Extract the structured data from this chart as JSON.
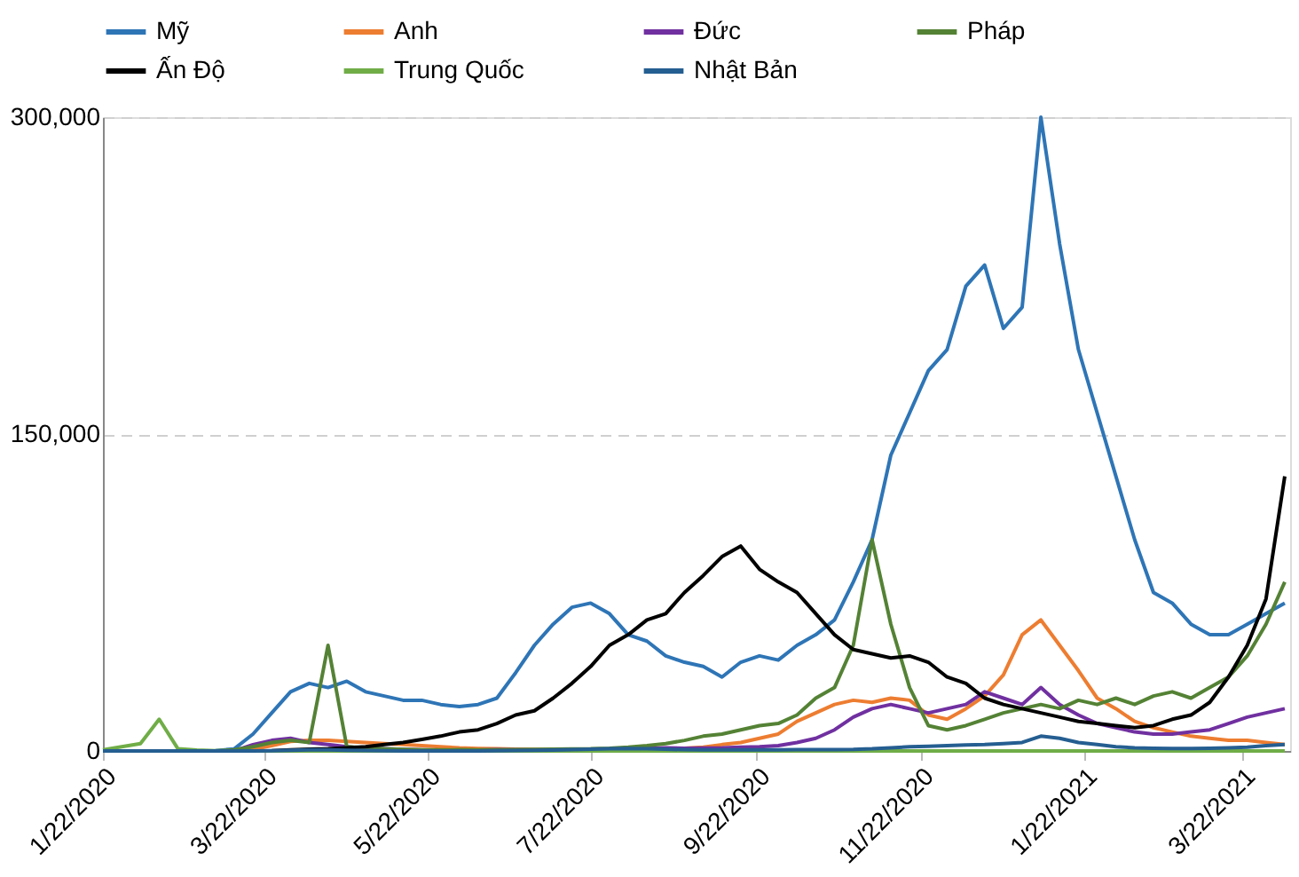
{
  "chart_data": {
    "type": "line",
    "x": [
      "2020-01-22",
      "2020-01-29",
      "2020-02-05",
      "2020-02-12",
      "2020-02-19",
      "2020-02-26",
      "2020-03-04",
      "2020-03-11",
      "2020-03-18",
      "2020-03-25",
      "2020-04-01",
      "2020-04-08",
      "2020-04-15",
      "2020-04-22",
      "2020-04-29",
      "2020-05-06",
      "2020-05-13",
      "2020-05-20",
      "2020-05-27",
      "2020-06-03",
      "2020-06-10",
      "2020-06-17",
      "2020-06-24",
      "2020-07-01",
      "2020-07-08",
      "2020-07-15",
      "2020-07-22",
      "2020-07-29",
      "2020-08-05",
      "2020-08-12",
      "2020-08-19",
      "2020-08-26",
      "2020-09-02",
      "2020-09-09",
      "2020-09-16",
      "2020-09-23",
      "2020-09-30",
      "2020-10-07",
      "2020-10-14",
      "2020-10-21",
      "2020-10-28",
      "2020-11-04",
      "2020-11-11",
      "2020-11-18",
      "2020-11-25",
      "2020-12-02",
      "2020-12-09",
      "2020-12-16",
      "2020-12-23",
      "2020-12-30",
      "2021-01-06",
      "2021-01-13",
      "2021-01-20",
      "2021-01-27",
      "2021-02-03",
      "2021-02-10",
      "2021-02-17",
      "2021-02-24",
      "2021-03-03",
      "2021-03-10",
      "2021-03-17",
      "2021-03-24",
      "2021-03-31",
      "2021-04-07"
    ],
    "series": [
      {
        "name": "Mỹ",
        "color": "#2e75b6",
        "values": [
          0,
          0,
          0,
          0,
          0,
          0,
          100,
          1000,
          8000,
          18000,
          28000,
          32000,
          30000,
          33000,
          28000,
          26000,
          24000,
          24000,
          22000,
          21000,
          22000,
          25000,
          37000,
          50000,
          60000,
          68000,
          70000,
          65000,
          55000,
          52000,
          45000,
          42000,
          40000,
          35000,
          42000,
          45000,
          43000,
          50000,
          55000,
          62000,
          80000,
          100000,
          140000,
          160000,
          180000,
          190000,
          220000,
          230000,
          200000,
          210000,
          300000,
          240000,
          190000,
          160000,
          130000,
          100000,
          75000,
          70000,
          60000,
          55000,
          55000,
          60000,
          65000,
          70000
        ]
      },
      {
        "name": "Anh",
        "color": "#ed7d31",
        "values": [
          null,
          null,
          null,
          null,
          null,
          null,
          null,
          0,
          700,
          2500,
          4500,
          5000,
          5000,
          4500,
          4000,
          3500,
          3000,
          2500,
          2000,
          1500,
          1200,
          1000,
          800,
          700,
          600,
          600,
          700,
          800,
          900,
          1000,
          1000,
          1300,
          1800,
          3000,
          4000,
          6000,
          8000,
          14000,
          18000,
          22000,
          24000,
          23000,
          25000,
          24000,
          17000,
          15000,
          20000,
          26000,
          36000,
          55000,
          62000,
          50000,
          38000,
          25000,
          20000,
          14000,
          11000,
          9000,
          7000,
          6000,
          5000,
          5000,
          4000,
          3000
        ]
      },
      {
        "name": "Đức",
        "color": "#7030a0",
        "values": [
          null,
          null,
          null,
          null,
          null,
          null,
          0,
          0,
          3000,
          5000,
          6000,
          4000,
          3000,
          2000,
          1200,
          1000,
          700,
          500,
          400,
          300,
          400,
          600,
          500,
          400,
          400,
          500,
          700,
          800,
          1000,
          1300,
          1500,
          1300,
          1400,
          1500,
          1800,
          2000,
          2500,
          4000,
          6000,
          10000,
          16000,
          20000,
          22000,
          20000,
          18000,
          20000,
          22000,
          28000,
          25000,
          22000,
          30000,
          22000,
          17000,
          13000,
          11000,
          9000,
          8000,
          8000,
          9000,
          10000,
          13000,
          16000,
          18000,
          20000
        ]
      },
      {
        "name": "Pháp",
        "color": "#548235",
        "values": [
          0,
          0,
          0,
          0,
          0,
          0,
          0,
          500,
          2000,
          4000,
          5000,
          4000,
          50000,
          2000,
          1500,
          1000,
          700,
          500,
          500,
          600,
          500,
          500,
          600,
          700,
          800,
          900,
          1000,
          1300,
          1800,
          2500,
          3500,
          5000,
          7000,
          8000,
          10000,
          12000,
          13000,
          17000,
          25000,
          30000,
          50000,
          100000,
          60000,
          30000,
          12000,
          10000,
          12000,
          15000,
          18000,
          20000,
          22000,
          20000,
          24000,
          22000,
          25000,
          22000,
          26000,
          28000,
          25000,
          30000,
          35000,
          45000,
          60000,
          80000
        ]
      },
      {
        "name": "Ấn Độ",
        "color": "#000000",
        "values": [
          0,
          0,
          0,
          0,
          0,
          0,
          0,
          0,
          0,
          100,
          500,
          800,
          1000,
          1500,
          2000,
          3000,
          4000,
          5500,
          7000,
          9000,
          10000,
          13000,
          17000,
          19000,
          25000,
          32000,
          40000,
          50000,
          55000,
          62000,
          65000,
          75000,
          83000,
          92000,
          97000,
          86000,
          80000,
          75000,
          65000,
          55000,
          48000,
          46000,
          44000,
          45000,
          42000,
          35000,
          32000,
          25000,
          22000,
          20000,
          18000,
          16000,
          14000,
          13000,
          12000,
          11000,
          12000,
          15000,
          17000,
          23000,
          35000,
          50000,
          72000,
          130000
        ]
      },
      {
        "name": "Trung Quốc",
        "color": "#70ad47",
        "values": [
          500,
          2000,
          3500,
          15000,
          1000,
          400,
          100,
          50,
          50,
          50,
          50,
          50,
          50,
          50,
          50,
          50,
          50,
          50,
          50,
          50,
          50,
          50,
          50,
          50,
          50,
          50,
          50,
          50,
          50,
          50,
          50,
          50,
          50,
          50,
          50,
          50,
          50,
          50,
          50,
          50,
          50,
          50,
          50,
          50,
          50,
          50,
          50,
          50,
          50,
          50,
          50,
          50,
          50,
          50,
          50,
          50,
          50,
          50,
          50,
          50,
          50,
          50,
          50,
          50
        ]
      },
      {
        "name": "Nhật Bản",
        "color": "#255e91",
        "values": [
          0,
          0,
          0,
          0,
          0,
          0,
          0,
          0,
          50,
          100,
          300,
          500,
          500,
          300,
          200,
          100,
          50,
          50,
          50,
          50,
          50,
          100,
          200,
          300,
          400,
          600,
          800,
          1000,
          1200,
          1000,
          800,
          600,
          500,
          500,
          500,
          500,
          500,
          600,
          600,
          600,
          700,
          1000,
          1500,
          2000,
          2200,
          2500,
          2800,
          3000,
          3500,
          4000,
          7000,
          6000,
          4000,
          3000,
          2000,
          1500,
          1300,
          1200,
          1200,
          1300,
          1500,
          1800,
          2500,
          3000
        ]
      }
    ],
    "xlim": [
      "2020-01-22",
      "2021-04-09"
    ],
    "xticks": [
      {
        "value": "2020-01-22",
        "label": "1/22/2020"
      },
      {
        "value": "2020-03-22",
        "label": "3/22/2020"
      },
      {
        "value": "2020-05-22",
        "label": "5/22/2020"
      },
      {
        "value": "2020-07-22",
        "label": "7/22/2020"
      },
      {
        "value": "2020-09-22",
        "label": "9/22/2020"
      },
      {
        "value": "2020-11-22",
        "label": "11/22/2020"
      },
      {
        "value": "2021-01-22",
        "label": "1/22/2021"
      },
      {
        "value": "2021-03-22",
        "label": "3/22/2021"
      }
    ],
    "ylim": [
      0,
      300000
    ],
    "yticks": [
      {
        "value": 0,
        "label": "0"
      },
      {
        "value": 150000,
        "label": "150,000"
      },
      {
        "value": 300000,
        "label": "300,000"
      }
    ],
    "grid": "y",
    "legend": "top",
    "line_style": "solid",
    "marker": "none"
  }
}
